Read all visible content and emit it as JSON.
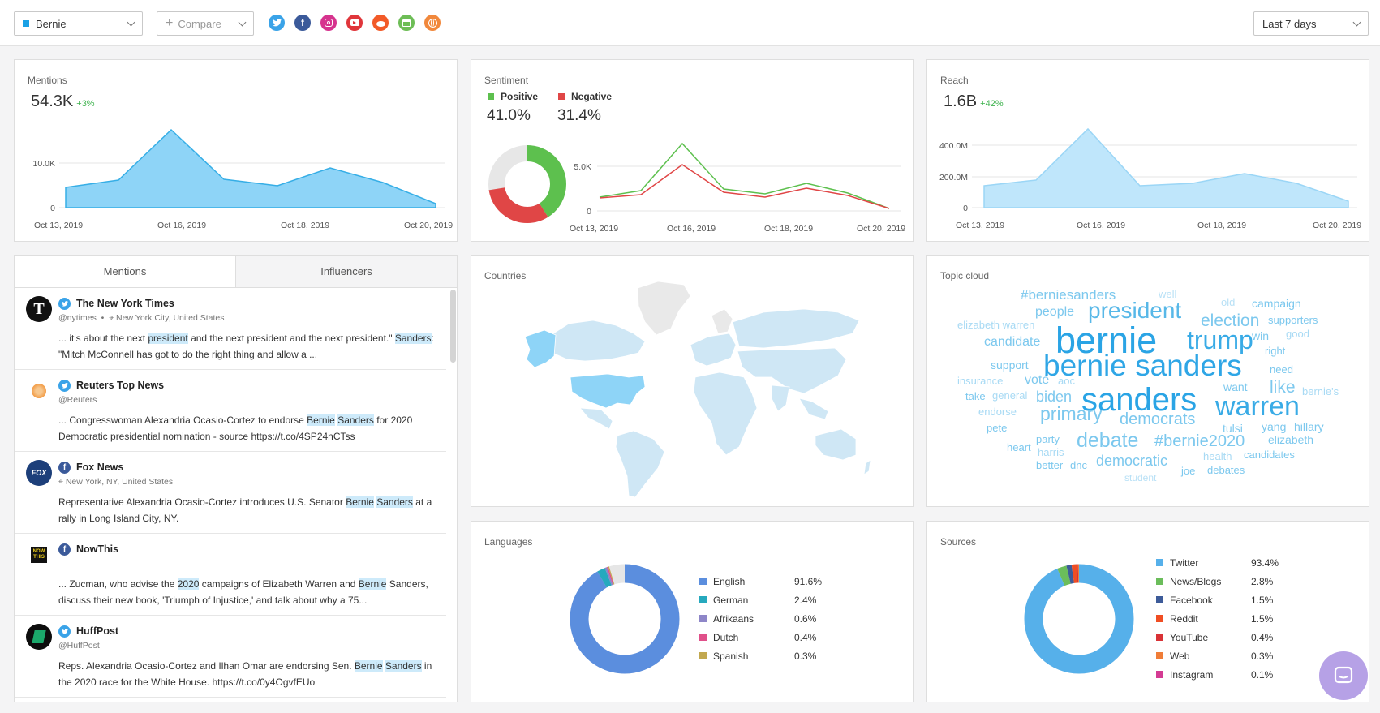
{
  "topbar": {
    "keyword": "Bernie",
    "compare": "Compare",
    "range": "Last 7 days",
    "sources": [
      "twitter-icon",
      "facebook-icon",
      "instagram-icon",
      "youtube-icon",
      "reddit-icon",
      "news-icon",
      "web-icon"
    ]
  },
  "mentions": {
    "title": "Mentions",
    "value": "54.3K",
    "delta": "+3%",
    "yticks": [
      "10.0K",
      "0"
    ],
    "xticks": [
      "Oct 13, 2019",
      "Oct 16, 2019",
      "Oct 18, 2019",
      "Oct 20, 2019"
    ]
  },
  "sentiment": {
    "title": "Sentiment",
    "positive_label": "Positive",
    "negative_label": "Negative",
    "positive_value": "41.0%",
    "negative_value": "31.4%",
    "yticks": [
      "5.0K",
      "0"
    ],
    "xticks": [
      "Oct 13, 2019",
      "Oct 16, 2019",
      "Oct 18, 2019",
      "Oct 20, 2019"
    ]
  },
  "reach": {
    "title": "Reach",
    "value": "1.6B",
    "delta": "+42%",
    "yticks": [
      "400.0M",
      "200.0M",
      "0"
    ],
    "xticks": [
      "Oct 13, 2019",
      "Oct 16, 2019",
      "Oct 18, 2019",
      "Oct 20, 2019"
    ]
  },
  "tabs": {
    "mentions": "Mentions",
    "influencers": "Influencers"
  },
  "posts": [
    {
      "name": "The New York Times",
      "handle": "@nytimes",
      "location": "New York City, United States",
      "text_parts": [
        "... it's about the next ",
        "president",
        " and the next president and the next president.\" ",
        "Sanders",
        ": \"Mitch McConnell has got to do the right thing and allow a ..."
      ]
    },
    {
      "name": "Reuters Top News",
      "handle": "@Reuters",
      "text_parts": [
        "... Congresswoman Alexandria Ocasio-Cortez to endorse ",
        "Bernie",
        " ",
        "Sanders",
        " for 2020 Democratic presidential nomination - source https://t.co/4SP24nCTss"
      ]
    },
    {
      "name": "Fox News",
      "location": "New York, NY, United States",
      "text_parts": [
        "Representative Alexandria Ocasio-Cortez introduces U.S. Senator ",
        "Bernie",
        " ",
        "Sanders",
        " at a rally in Long Island City, NY."
      ]
    },
    {
      "name": "NowThis",
      "text_parts": [
        "... Zucman, who advise the ",
        "2020",
        " campaigns of Elizabeth Warren and ",
        "Bernie",
        " Sanders, discuss their new book, 'Triumph of Injustice,' and talk about why a 75..."
      ]
    },
    {
      "name": "HuffPost",
      "handle": "@HuffPost",
      "text_parts": [
        "Reps. Alexandria Ocasio-Cortez and Ilhan Omar are endorsing Sen. ",
        "Bernie",
        " ",
        "Sanders",
        " in the 2020 race for the White House. https://t.co/0y4OgvfEUo"
      ]
    }
  ],
  "countries": {
    "title": "Countries"
  },
  "topic_cloud": {
    "title": "Topic cloud",
    "words": [
      "#berniesanders",
      "well",
      "old",
      "campaign",
      "people",
      "president",
      "election",
      "supporters",
      "elizabeth warren",
      "bernie",
      "trump",
      "win",
      "good",
      "candidate",
      "right",
      "support",
      "bernie sanders",
      "need",
      "insurance",
      "vote",
      "aoc",
      "want",
      "like",
      "bernie's",
      "take",
      "general",
      "biden",
      "sanders",
      "warren",
      "endorse",
      "primary",
      "democrats",
      "pete",
      "tulsi",
      "yang",
      "hillary",
      "party",
      "debate",
      "#bernie2020",
      "elizabeth",
      "heart",
      "harris",
      "health",
      "candidates",
      "better",
      "dnc",
      "democratic",
      "joe",
      "debates",
      "student"
    ]
  },
  "languages": {
    "title": "Languages",
    "items": [
      {
        "label": "English",
        "value": "91.6%",
        "color": "#5b8ede"
      },
      {
        "label": "German",
        "value": "2.4%",
        "color": "#26a9be"
      },
      {
        "label": "Afrikaans",
        "value": "0.6%",
        "color": "#8e86c8"
      },
      {
        "label": "Dutch",
        "value": "0.4%",
        "color": "#e0508a"
      },
      {
        "label": "Spanish",
        "value": "0.3%",
        "color": "#c2a84f"
      }
    ]
  },
  "sources": {
    "title": "Sources",
    "items": [
      {
        "label": "Twitter",
        "value": "93.4%",
        "color": "#56b0ea"
      },
      {
        "label": "News/Blogs",
        "value": "2.8%",
        "color": "#6bbd5b"
      },
      {
        "label": "Facebook",
        "value": "1.5%",
        "color": "#3d5b99"
      },
      {
        "label": "Reddit",
        "value": "1.5%",
        "color": "#f04e23"
      },
      {
        "label": "YouTube",
        "value": "0.4%",
        "color": "#d93236"
      },
      {
        "label": "Web",
        "value": "0.3%",
        "color": "#f07d38"
      },
      {
        "label": "Instagram",
        "value": "0.1%",
        "color": "#d43b93"
      }
    ]
  },
  "colors": {
    "accent": "#1aa1e5",
    "positive": "#5dc04e",
    "negative": "#e04646",
    "area": "#8ed4f7"
  }
}
